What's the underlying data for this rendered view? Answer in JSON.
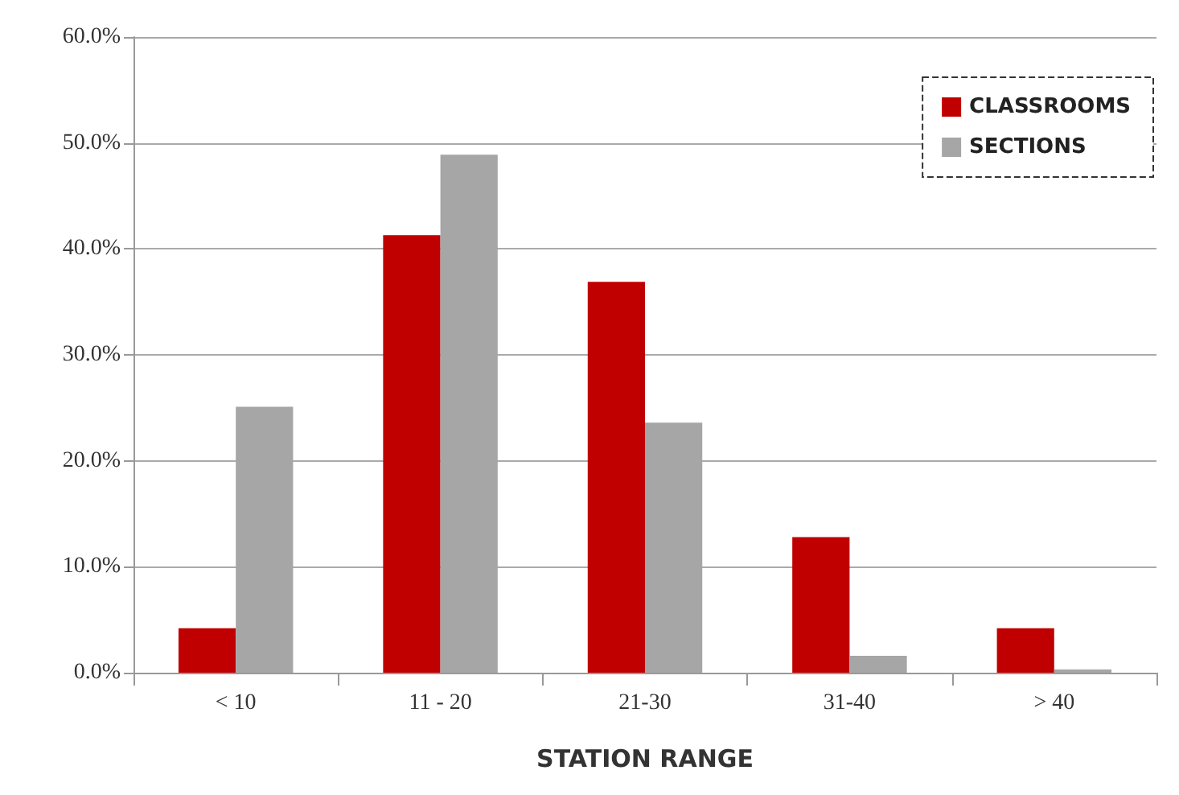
{
  "chart_data": {
    "type": "bar",
    "xlabel": "STATION RANGE",
    "categories": [
      "< 10",
      "11 - 20",
      "21-30",
      "31-40",
      "> 40"
    ],
    "series": [
      {
        "name": "CLASSROOMS",
        "color": "#c00000",
        "values": [
          4.2,
          41.3,
          36.9,
          12.8,
          4.2
        ]
      },
      {
        "name": "SECTIONS",
        "color": "#a6a6a6",
        "values": [
          25.1,
          48.9,
          23.6,
          1.6,
          0.3
        ]
      }
    ],
    "ylim": [
      0,
      60
    ],
    "yticks": [
      {
        "value": 0,
        "label": "0.0%"
      },
      {
        "value": 10,
        "label": "10.0%"
      },
      {
        "value": 20,
        "label": "20.0%"
      },
      {
        "value": 30,
        "label": "30.0%"
      },
      {
        "value": 40,
        "label": "40.0%"
      },
      {
        "value": 50,
        "label": "50.0%"
      },
      {
        "value": 60,
        "label": "60.0%"
      }
    ],
    "grid": "y",
    "legend": "top right"
  }
}
